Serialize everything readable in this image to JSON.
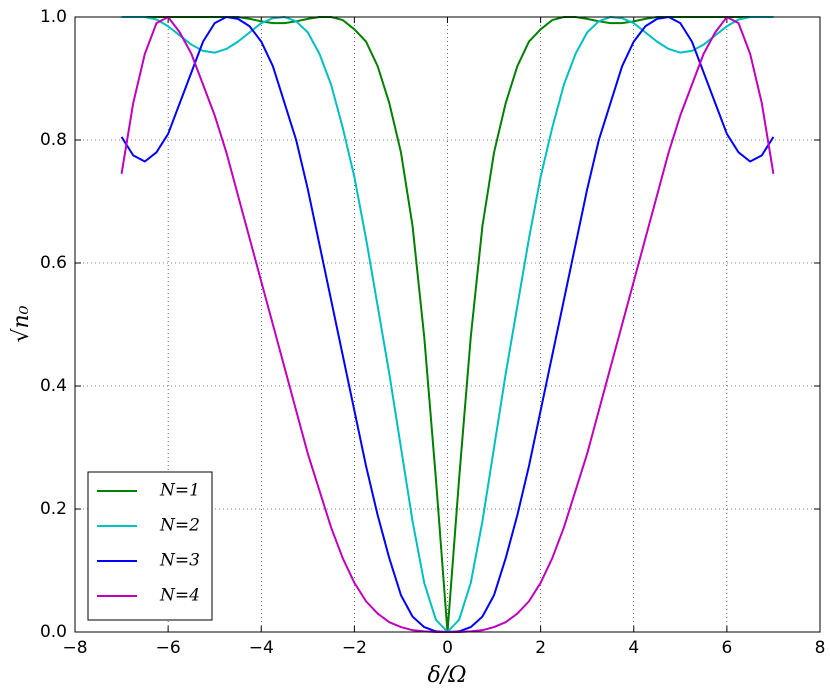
{
  "chart_data": {
    "type": "line",
    "xlabel": "δ/Ω",
    "ylabel": "√n₀",
    "xlim": [
      -8,
      8
    ],
    "ylim": [
      0,
      1
    ],
    "xticks": [
      {
        "value": -8,
        "label": "−8"
      },
      {
        "value": -6,
        "label": "−6"
      },
      {
        "value": -4,
        "label": "−4"
      },
      {
        "value": -2,
        "label": "−2"
      },
      0,
      2,
      4,
      6,
      8
    ],
    "yticks": [
      {
        "value": 0,
        "label": "0.0"
      },
      0.2,
      0.4,
      0.6,
      0.8,
      {
        "value": 1,
        "label": "1.0"
      }
    ],
    "grid": true,
    "legend": "lower left",
    "x": [
      -7,
      -6.75,
      -6.5,
      -6.25,
      -6,
      -5.75,
      -5.5,
      -5.25,
      -5,
      -4.75,
      -4.5,
      -4.25,
      -4,
      -3.75,
      -3.5,
      -3.25,
      -3,
      -2.75,
      -2.5,
      -2.25,
      -2,
      -1.75,
      -1.5,
      -1.25,
      -1,
      -0.75,
      -0.5,
      -0.25,
      0,
      0.25,
      0.5,
      0.75,
      1,
      1.25,
      1.5,
      1.75,
      2,
      2.25,
      2.5,
      2.75,
      3,
      3.25,
      3.5,
      3.75,
      4,
      4.25,
      4.5,
      4.75,
      5,
      5.25,
      5.5,
      5.75,
      6,
      6.25,
      6.5,
      6.75,
      7
    ],
    "series": [
      {
        "name": "N=1",
        "color": "#008000",
        "values": [
          1,
          1,
          1,
          1,
          1,
          1,
          1,
          1,
          1,
          1,
          1,
          0.997,
          0.993,
          0.99,
          0.99,
          0.993,
          0.997,
          1,
          1,
          0.995,
          0.98,
          0.96,
          0.92,
          0.86,
          0.78,
          0.66,
          0.48,
          0.25,
          0,
          0.25,
          0.48,
          0.66,
          0.78,
          0.86,
          0.92,
          0.96,
          0.98,
          0.995,
          1,
          1,
          0.997,
          0.993,
          0.99,
          0.99,
          0.993,
          0.997,
          1,
          1,
          1,
          1,
          1,
          1,
          1,
          1,
          1,
          1,
          1
        ]
      },
      {
        "name": "N=2",
        "color": "#00bfbf",
        "values": [
          1,
          1,
          1,
          0.996,
          0.985,
          0.97,
          0.955,
          0.945,
          0.942,
          0.948,
          0.96,
          0.975,
          0.99,
          0.998,
          1,
          0.993,
          0.975,
          0.94,
          0.89,
          0.82,
          0.74,
          0.64,
          0.53,
          0.42,
          0.3,
          0.18,
          0.08,
          0.02,
          0,
          0.02,
          0.08,
          0.18,
          0.3,
          0.42,
          0.53,
          0.64,
          0.74,
          0.82,
          0.89,
          0.94,
          0.975,
          0.993,
          1,
          0.998,
          0.99,
          0.975,
          0.96,
          0.948,
          0.942,
          0.945,
          0.955,
          0.97,
          0.985,
          0.996,
          1,
          1,
          1
        ]
      },
      {
        "name": "N=3",
        "color": "#0000ff",
        "values": [
          0.805,
          0.775,
          0.765,
          0.78,
          0.81,
          0.86,
          0.91,
          0.96,
          0.99,
          1,
          0.997,
          0.985,
          0.96,
          0.92,
          0.86,
          0.8,
          0.72,
          0.63,
          0.54,
          0.45,
          0.36,
          0.27,
          0.19,
          0.12,
          0.06,
          0.025,
          0.008,
          0.001,
          0,
          0.001,
          0.008,
          0.025,
          0.06,
          0.12,
          0.19,
          0.27,
          0.36,
          0.45,
          0.54,
          0.63,
          0.72,
          0.8,
          0.86,
          0.92,
          0.96,
          0.985,
          0.997,
          1,
          0.99,
          0.96,
          0.91,
          0.86,
          0.81,
          0.78,
          0.765,
          0.775,
          0.805
        ]
      },
      {
        "name": "N=4",
        "color": "#bf00bf",
        "values": [
          0.745,
          0.86,
          0.94,
          0.99,
          1,
          0.975,
          0.94,
          0.89,
          0.84,
          0.78,
          0.71,
          0.64,
          0.57,
          0.5,
          0.43,
          0.36,
          0.29,
          0.23,
          0.17,
          0.12,
          0.08,
          0.05,
          0.03,
          0.016,
          0.008,
          0.003,
          0.001,
          0,
          0,
          0,
          0.001,
          0.003,
          0.008,
          0.016,
          0.03,
          0.05,
          0.08,
          0.12,
          0.17,
          0.23,
          0.29,
          0.36,
          0.43,
          0.5,
          0.57,
          0.64,
          0.71,
          0.78,
          0.84,
          0.89,
          0.94,
          0.975,
          1,
          0.99,
          0.94,
          0.86,
          0.745
        ]
      }
    ]
  }
}
